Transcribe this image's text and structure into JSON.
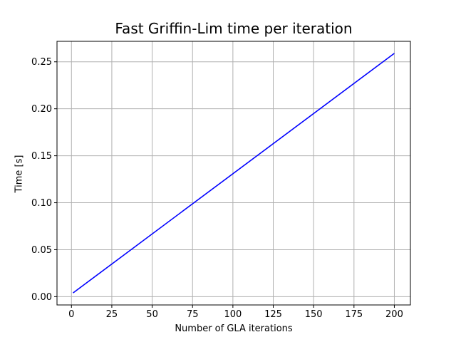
{
  "chart_data": {
    "type": "line",
    "title": "Fast Griffin-Lim time per iteration",
    "xlabel": "Number of GLA iterations",
    "ylabel": "Time [s]",
    "xlim": [
      -8.95,
      209.95
    ],
    "ylim": [
      -0.0088,
      0.2718
    ],
    "xticks": [
      0,
      25,
      50,
      75,
      100,
      125,
      150,
      175,
      200
    ],
    "xtick_labels": [
      "0",
      "25",
      "50",
      "75",
      "100",
      "125",
      "150",
      "175",
      "200"
    ],
    "yticks": [
      0.0,
      0.05,
      0.1,
      0.15,
      0.2,
      0.25
    ],
    "ytick_labels": [
      "0.00",
      "0.05",
      "0.10",
      "0.15",
      "0.20",
      "0.25"
    ],
    "grid": true,
    "series": [
      {
        "color": "#0000ff",
        "x": [
          1,
          200
        ],
        "y": [
          0.004,
          0.259
        ]
      }
    ]
  }
}
